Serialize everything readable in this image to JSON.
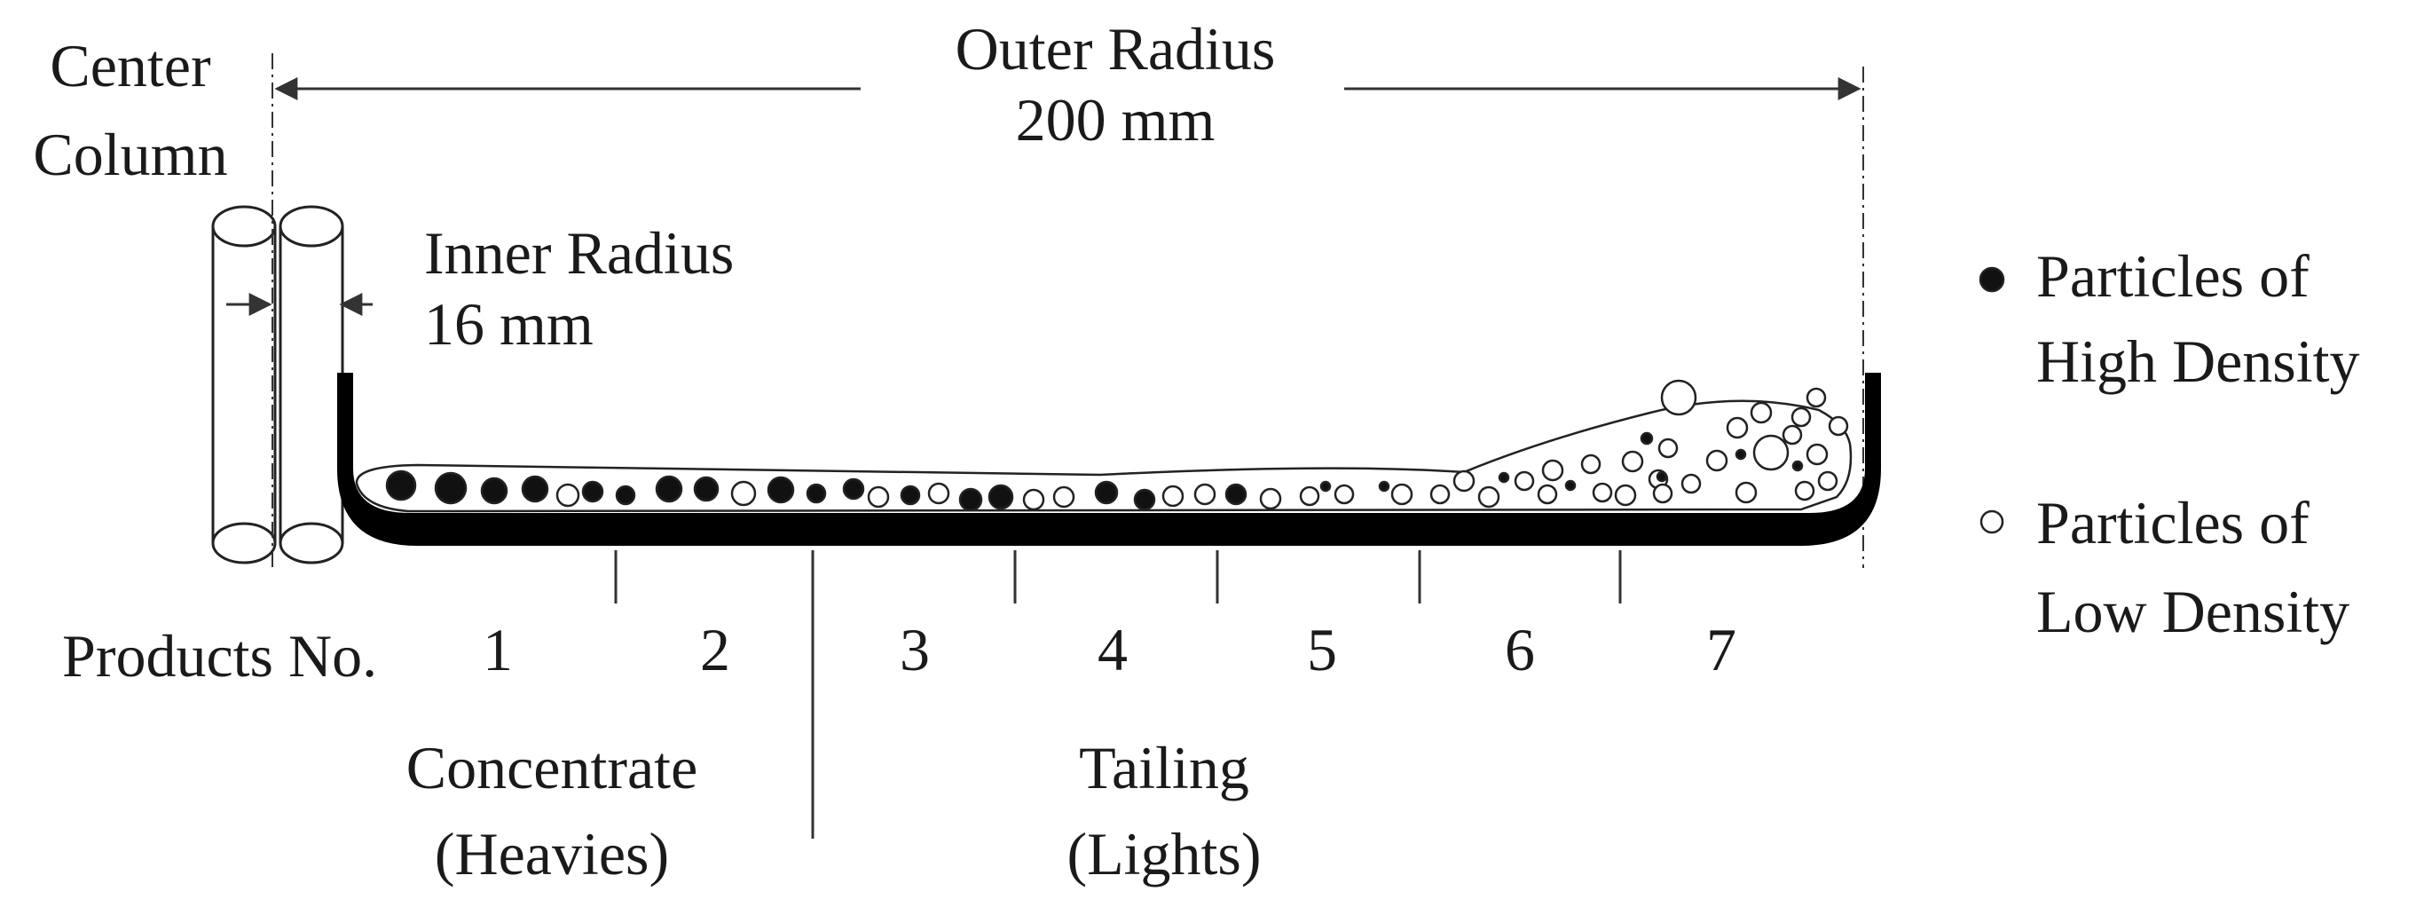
{
  "labels": {
    "center_column_line1": "Center",
    "center_column_line2": "Column",
    "outer_radius_line1": "Outer Radius",
    "outer_radius_line2": "200 mm",
    "inner_radius_line1": "Inner Radius",
    "inner_radius_line2": "16 mm",
    "products_no": "Products No.",
    "concentrate_line1": "Concentrate",
    "concentrate_line2": "(Heavies)",
    "tailing_line1": "Tailing",
    "tailing_line2": "(Lights)"
  },
  "products": [
    "1",
    "2",
    "3",
    "4",
    "5",
    "6",
    "7"
  ],
  "legend": {
    "high_density_line1": "Particles of",
    "high_density_line2": "High Density",
    "low_density_line1": "Particles of",
    "low_density_line2": "Low Density"
  },
  "colors": {
    "high_density_particle": "#111111",
    "low_density_particle": "#ffffff",
    "bowl": "#000000",
    "stroke": "#222222"
  }
}
